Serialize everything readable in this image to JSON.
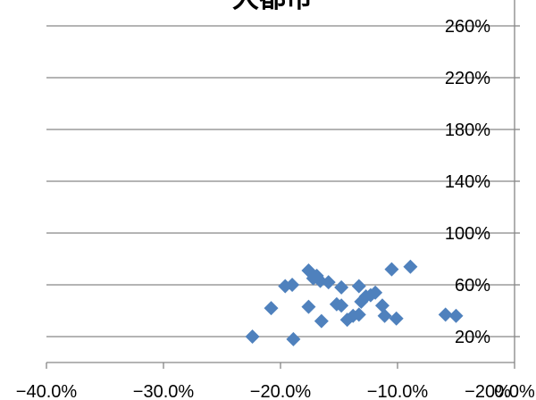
{
  "chart_data": {
    "type": "scatter",
    "title": "大都市",
    "xlabel": "",
    "ylabel": "",
    "xlim": [
      -40,
      0
    ],
    "ylim": [
      0,
      280
    ],
    "grid": true,
    "legend": "none",
    "x_tick_values": [
      -40,
      -30,
      -20,
      -10,
      0
    ],
    "x_tick_labels": [
      "−40.0%",
      "−30.0%",
      "−20.0%",
      "−10.0%",
      "0.0%"
    ],
    "y_tick_values": [
      20,
      60,
      100,
      140,
      180,
      220,
      260
    ],
    "y_tick_labels": [
      "20%",
      "60%",
      "100%",
      "140%",
      "180%",
      "220%",
      "260%"
    ],
    "extra_x_label": "−20%",
    "marker_color": "#4F81BD",
    "points": [
      {
        "x": -22.4,
        "y": 20
      },
      {
        "x": -20.8,
        "y": 42
      },
      {
        "x": -19.6,
        "y": 59
      },
      {
        "x": -19.0,
        "y": 60
      },
      {
        "x": -18.9,
        "y": 18
      },
      {
        "x": -17.6,
        "y": 71
      },
      {
        "x": -17.6,
        "y": 43
      },
      {
        "x": -17.2,
        "y": 65
      },
      {
        "x": -16.9,
        "y": 67
      },
      {
        "x": -16.6,
        "y": 63
      },
      {
        "x": -16.5,
        "y": 32
      },
      {
        "x": -15.9,
        "y": 62
      },
      {
        "x": -15.2,
        "y": 45
      },
      {
        "x": -14.8,
        "y": 58
      },
      {
        "x": -14.8,
        "y": 44
      },
      {
        "x": -14.3,
        "y": 33
      },
      {
        "x": -13.8,
        "y": 36
      },
      {
        "x": -13.3,
        "y": 59
      },
      {
        "x": -13.3,
        "y": 37
      },
      {
        "x": -13.1,
        "y": 47
      },
      {
        "x": -12.7,
        "y": 51
      },
      {
        "x": -12.3,
        "y": 52
      },
      {
        "x": -11.9,
        "y": 54
      },
      {
        "x": -11.3,
        "y": 44
      },
      {
        "x": -11.1,
        "y": 36
      },
      {
        "x": -10.5,
        "y": 72
      },
      {
        "x": -10.1,
        "y": 34
      },
      {
        "x": -8.9,
        "y": 74
      },
      {
        "x": -5.9,
        "y": 37
      },
      {
        "x": -5.0,
        "y": 36
      }
    ]
  }
}
